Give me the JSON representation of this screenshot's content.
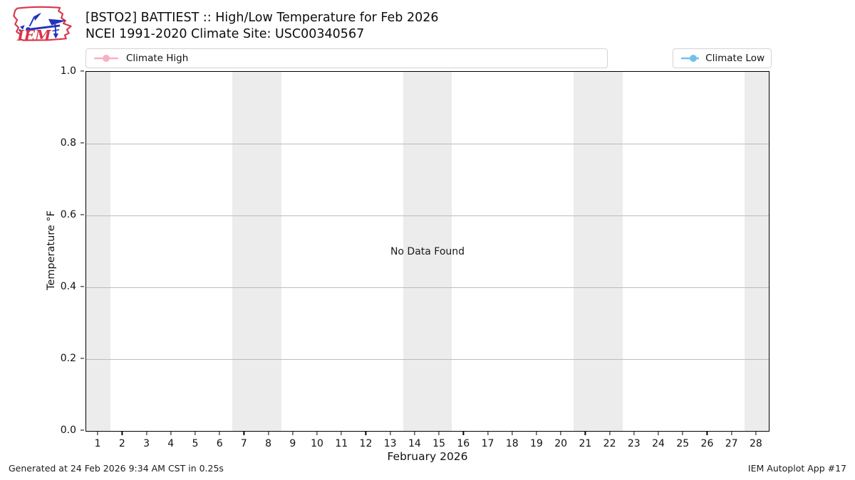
{
  "logo": {
    "text": "IEM"
  },
  "header": {
    "title": "[BSTO2] BATTIEST :: High/Low Temperature for Feb 2026",
    "subtitle": "NCEI 1991-2020 Climate Site: USC00340567"
  },
  "legend": {
    "high": {
      "label": "Climate High",
      "color": "#f8b0c1"
    },
    "low": {
      "label": "Climate Low",
      "color": "#70c3e8"
    }
  },
  "chart_data": {
    "type": "line",
    "title": "[BSTO2] BATTIEST :: High/Low Temperature for Feb 2026",
    "subtitle": "NCEI 1991-2020 Climate Site: USC00340567",
    "xlabel": "February 2026",
    "ylabel": "Temperature °F",
    "annotation": "No Data Found",
    "xlim": [
      0.5,
      28.5
    ],
    "ylim": [
      0.0,
      1.0
    ],
    "xticks": [
      1,
      2,
      3,
      4,
      5,
      6,
      7,
      8,
      9,
      10,
      11,
      12,
      13,
      14,
      15,
      16,
      17,
      18,
      19,
      20,
      21,
      22,
      23,
      24,
      25,
      26,
      27,
      28
    ],
    "yticks": [
      {
        "value": 0.0,
        "label": "0.0"
      },
      {
        "value": 0.2,
        "label": "0.2"
      },
      {
        "value": 0.4,
        "label": "0.4"
      },
      {
        "value": 0.6,
        "label": "0.6"
      },
      {
        "value": 0.8,
        "label": "0.8"
      },
      {
        "value": 1.0,
        "label": "1.0"
      }
    ],
    "gridlines_y": [
      0.2,
      0.4,
      0.6,
      0.8
    ],
    "weekend_bands_x": [
      [
        0.5,
        1.5
      ],
      [
        6.5,
        8.5
      ],
      [
        13.5,
        15.5
      ],
      [
        20.5,
        22.5
      ],
      [
        27.5,
        28.5
      ]
    ],
    "series": [
      {
        "name": "Climate High",
        "color": "#f8b0c1",
        "x": [],
        "values": []
      },
      {
        "name": "Climate Low",
        "color": "#70c3e8",
        "x": [],
        "values": []
      }
    ],
    "legend_position": "top (Climate High left box, Climate Low right box)",
    "grid": "horizontal gridlines on; weekend day columns shaded"
  },
  "footer": {
    "left": "Generated at 24 Feb 2026 9:34 AM CST in 0.25s",
    "right": "IEM Autoplot App #17"
  },
  "colors": {
    "background": "#ffffff",
    "weekend_band": "#ececec",
    "gridline": "#bcbcbc",
    "axis_spine": "#000000",
    "legend_border": "#d3d3d3",
    "logo_red": "#d8364a",
    "logo_blue": "#2233bb",
    "text": "#111111"
  }
}
